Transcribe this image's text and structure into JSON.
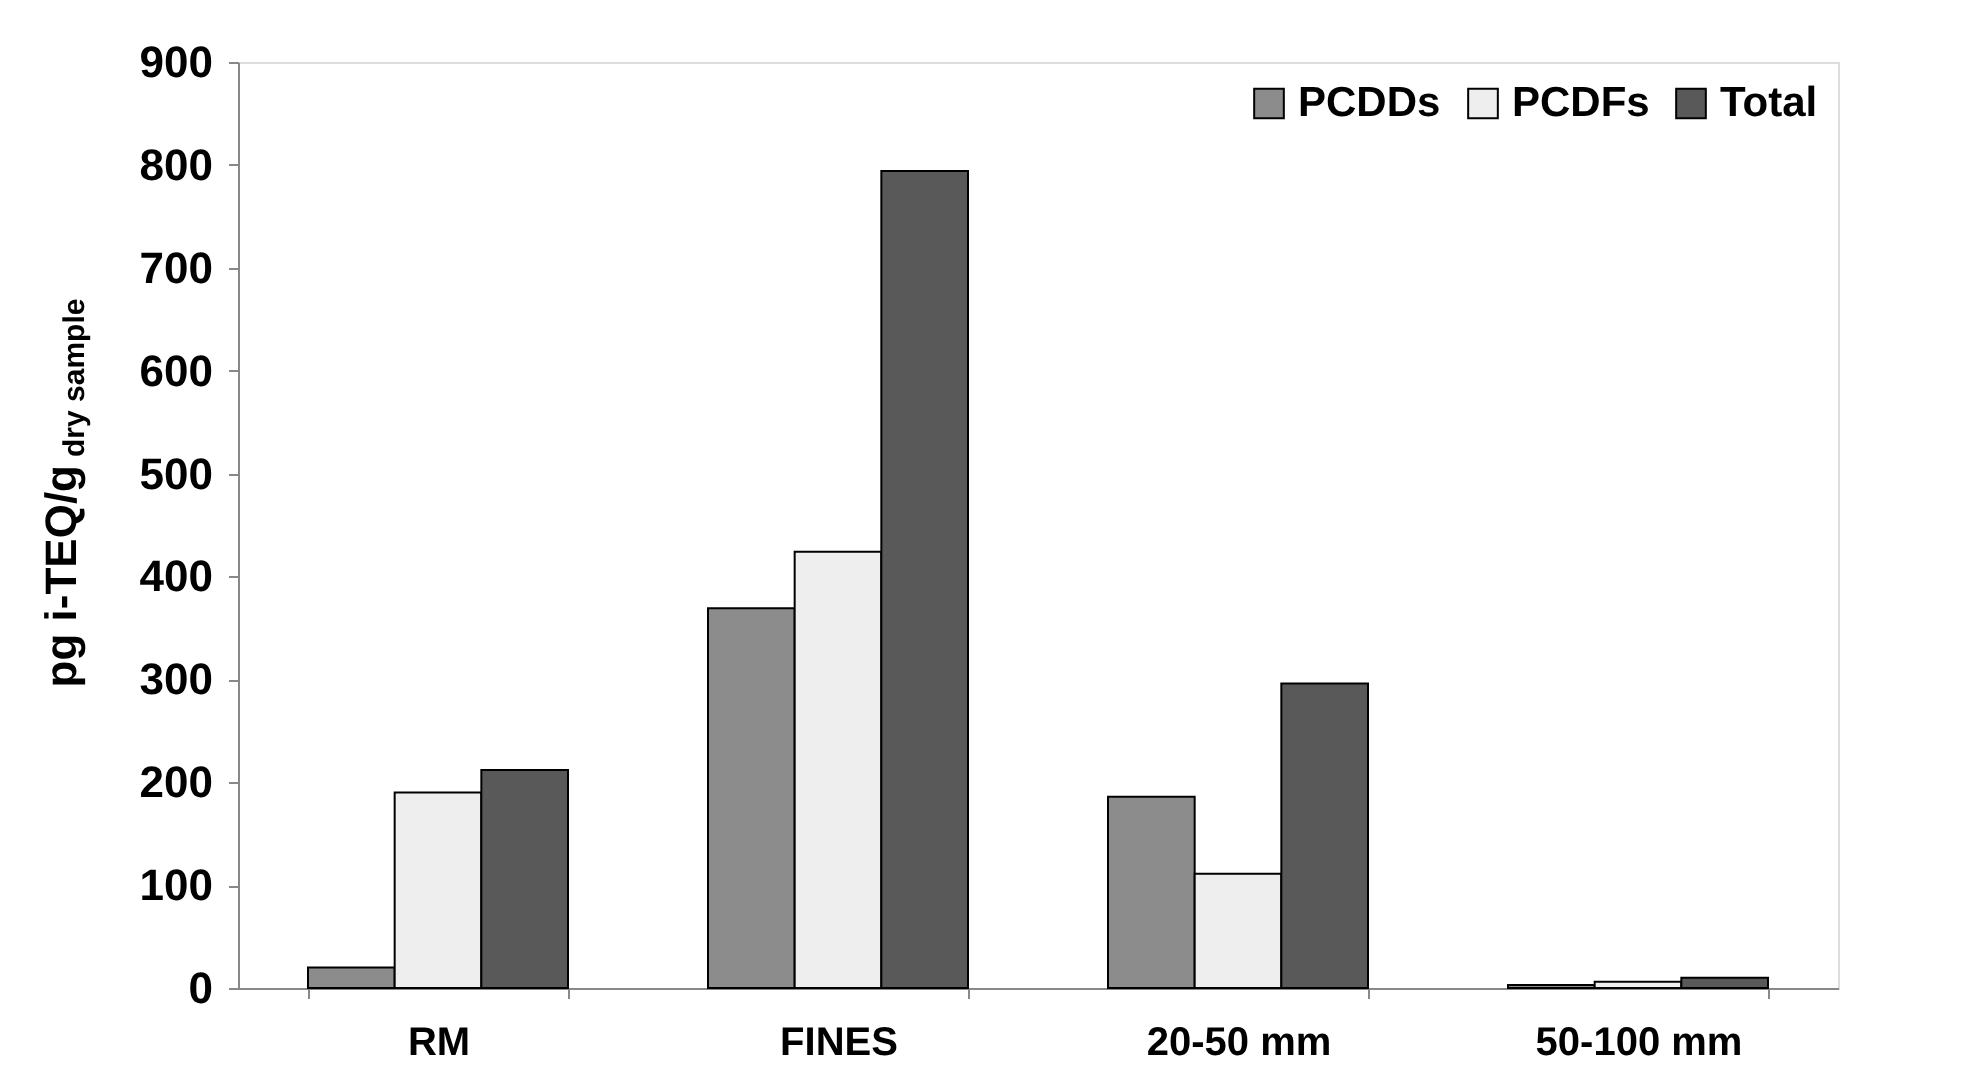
{
  "chart_data": {
    "type": "bar",
    "ylabel": "pg i-TEQ/g$_{dry sample}$",
    "categories": [
      "RM",
      "FINES",
      "20-50 mm",
      "50-100 mm"
    ],
    "series": [
      {
        "name": "PCDDs",
        "color": "#8c8c8c",
        "values": [
          20,
          369,
          186,
          3
        ]
      },
      {
        "name": "PCDFs",
        "color": "#eeeeee",
        "values": [
          190,
          424,
          111,
          6
        ]
      },
      {
        "name": "Total",
        "color": "#595959",
        "values": [
          212,
          794,
          296,
          10
        ]
      }
    ],
    "ylim": [
      0,
      900
    ],
    "yticks": [
      0,
      100,
      200,
      300,
      400,
      500,
      600,
      700,
      800,
      900
    ],
    "grid": false,
    "legend": "top right"
  }
}
